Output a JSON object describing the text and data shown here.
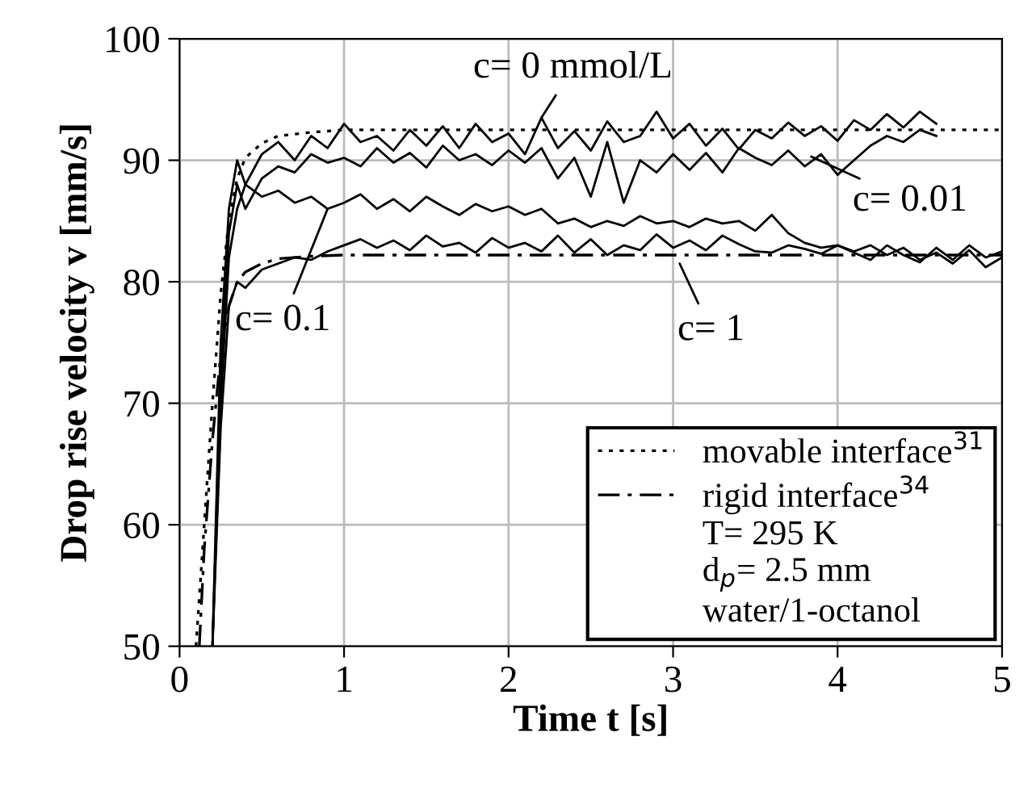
{
  "chart_data": {
    "type": "line",
    "xlabel": "Time t [s]",
    "ylabel": "Drop rise velocity v [mm/s]",
    "xlim": [
      0,
      5
    ],
    "ylim": [
      50,
      100
    ],
    "xticks": [
      0,
      1,
      2,
      3,
      4,
      5
    ],
    "yticks": [
      50,
      60,
      70,
      80,
      90,
      100
    ],
    "grid": true,
    "legend": "bottom right",
    "series": [
      {
        "color": "#000000",
        "line_style": "solid",
        "x": [
          0.2,
          0.25,
          0.3,
          0.35,
          0.4,
          0.5,
          0.6,
          0.7,
          0.8,
          0.9,
          1.0,
          1.1,
          1.2,
          1.3,
          1.4,
          1.5,
          1.6,
          1.7,
          1.8,
          1.9,
          2.0,
          2.1,
          2.2,
          2.3,
          2.4,
          2.5,
          2.6,
          2.7,
          2.8,
          2.9,
          3.0,
          3.1,
          3.2,
          3.3,
          3.4,
          3.5,
          3.6,
          3.7,
          3.8,
          3.9,
          4.0,
          4.1,
          4.2,
          4.3,
          4.4,
          4.5,
          4.6
        ],
        "values": [
          50,
          75,
          86,
          90,
          88,
          90.5,
          91.5,
          90,
          92,
          91,
          93,
          91.5,
          92,
          90.8,
          92.5,
          91.2,
          92.8,
          91,
          93,
          91.5,
          92.2,
          90.5,
          93.5,
          91,
          92.4,
          90.8,
          93.2,
          91.5,
          92,
          94,
          91.8,
          93,
          91.2,
          92.6,
          90.9,
          92.5,
          91.8,
          93.1,
          92,
          92.8,
          91.6,
          93.3,
          92.5,
          93.8,
          92.7,
          94,
          93
        ]
      },
      {
        "color": "#000000",
        "line_style": "solid",
        "x": [
          0.2,
          0.25,
          0.3,
          0.35,
          0.4,
          0.5,
          0.6,
          0.7,
          0.8,
          0.9,
          1.0,
          1.1,
          1.2,
          1.3,
          1.4,
          1.5,
          1.6,
          1.7,
          1.8,
          1.9,
          2.0,
          2.1,
          2.2,
          2.3,
          2.4,
          2.5,
          2.6,
          2.7,
          2.8,
          2.9,
          3.0,
          3.1,
          3.2,
          3.3,
          3.4,
          3.5,
          3.6,
          3.7,
          3.8,
          3.9,
          4.0,
          4.1,
          4.2,
          4.3,
          4.4,
          4.5,
          4.6
        ],
        "values": [
          50,
          72,
          84,
          88,
          86,
          88.5,
          89.5,
          89,
          90.5,
          89.8,
          90.2,
          89.5,
          91,
          89.8,
          90.6,
          89.4,
          91.2,
          90,
          90.5,
          89.6,
          90.8,
          89.8,
          91,
          88.5,
          90.2,
          87,
          91.5,
          86.5,
          90,
          89,
          90.5,
          89.2,
          90.6,
          89,
          91,
          90.2,
          89.6,
          90.8,
          89.5,
          90.5,
          88.8,
          90,
          91.2,
          92,
          91.5,
          92.5,
          92
        ]
      },
      {
        "color": "#000000",
        "line_style": "solid",
        "x": [
          0.2,
          0.25,
          0.3,
          0.35,
          0.4,
          0.5,
          0.6,
          0.7,
          0.8,
          0.9,
          1.0,
          1.1,
          1.2,
          1.3,
          1.4,
          1.5,
          1.6,
          1.7,
          1.8,
          1.9,
          2.0,
          2.1,
          2.2,
          2.3,
          2.4,
          2.5,
          2.6,
          2.7,
          2.8,
          2.9,
          3.0,
          3.1,
          3.2,
          3.3,
          3.4,
          3.5,
          3.6,
          3.7,
          3.8,
          3.9,
          4.0,
          4.1,
          4.2,
          4.3,
          4.4,
          4.5,
          4.6,
          4.7,
          4.8,
          4.9,
          5.0
        ],
        "values": [
          50,
          70,
          82,
          86,
          88,
          87,
          87.5,
          86.5,
          87,
          86,
          86.5,
          87.2,
          86,
          86.8,
          85.8,
          87,
          86.2,
          85.5,
          86.4,
          85.8,
          86.2,
          85.5,
          86,
          84.8,
          85.2,
          84.5,
          85,
          84.6,
          85.4,
          84.8,
          85,
          84.5,
          85.2,
          84.8,
          85,
          84.2,
          85.5,
          84,
          83.2,
          82.8,
          83,
          82.5,
          83,
          82.2,
          82.8,
          81.8,
          82.4,
          81.5,
          82.6,
          81.2,
          82
        ]
      },
      {
        "color": "#000000",
        "line_style": "solid",
        "x": [
          0.2,
          0.25,
          0.3,
          0.35,
          0.4,
          0.5,
          0.6,
          0.7,
          0.8,
          0.9,
          1.0,
          1.1,
          1.2,
          1.3,
          1.4,
          1.5,
          1.6,
          1.7,
          1.8,
          1.9,
          2.0,
          2.1,
          2.2,
          2.3,
          2.4,
          2.5,
          2.6,
          2.7,
          2.8,
          2.9,
          3.0,
          3.1,
          3.2,
          3.3,
          3.4,
          3.5,
          3.6,
          3.7,
          3.8,
          3.9,
          4.0,
          4.1,
          4.2,
          4.3,
          4.4,
          4.5,
          4.6,
          4.7,
          4.8,
          4.9,
          5.0
        ],
        "values": [
          50,
          68,
          78,
          80,
          79.5,
          81,
          81.5,
          82,
          81.8,
          82.5,
          83,
          83.5,
          82.8,
          83.4,
          82.6,
          83.8,
          82.9,
          83.2,
          82.4,
          83.6,
          82.8,
          83.2,
          82.5,
          83.8,
          82.4,
          83.5,
          82.2,
          83,
          82.6,
          83.9,
          82.8,
          83.4,
          82.6,
          83.8,
          83.1,
          82.5,
          82.4,
          83,
          82.7,
          82.3,
          83,
          82.4,
          81.8,
          83,
          82.2,
          81.6,
          82.8,
          81.8,
          83,
          82,
          82.5
        ]
      },
      {
        "name": "movable interface$^{31}$",
        "color": "#000000",
        "line_style": "dotted",
        "x": [
          0.1,
          0.15,
          0.2,
          0.25,
          0.3,
          0.35,
          0.4,
          0.5,
          0.6,
          0.8,
          1.0,
          1.5,
          2,
          3,
          4,
          5
        ],
        "values": [
          50,
          60,
          70,
          79,
          85,
          88.5,
          90.2,
          91.4,
          92,
          92.3,
          92.5,
          92.5,
          92.5,
          92.5,
          92.5,
          92.5
        ]
      },
      {
        "name": "rigid interface$^{34}$",
        "color": "#000000",
        "line_style": "dashdot",
        "x": [
          0.12,
          0.15,
          0.2,
          0.25,
          0.3,
          0.35,
          0.4,
          0.5,
          0.6,
          0.8,
          1,
          2,
          3,
          4,
          5
        ],
        "values": [
          50,
          58,
          67,
          74,
          78,
          80,
          80.8,
          81.5,
          81.9,
          82.1,
          82.2,
          82.2,
          82.2,
          82.2,
          82.2
        ]
      }
    ],
    "annotations": [
      {
        "text": "c= 0 mmol/L",
        "x": 2.2,
        "y": 93.5
      },
      {
        "text": "c= 0.01",
        "x": 3.84,
        "y": 90.3
      },
      {
        "text": "c= 0.1",
        "x": 0.9,
        "y": 86
      },
      {
        "text": "c= 1",
        "x": 3.04,
        "y": 81.5
      },
      "T= 295 K",
      "d$_{p}$= 2.5 mm",
      "water/1-octanol"
    ]
  }
}
